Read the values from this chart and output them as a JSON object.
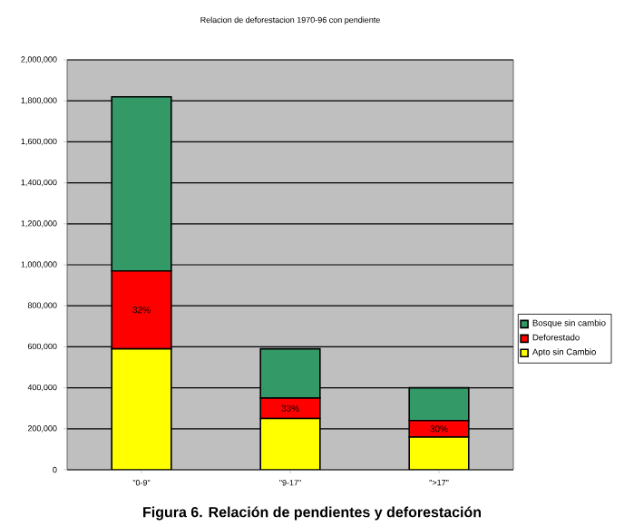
{
  "chart_data": {
    "type": "bar",
    "title": "Relacion de deforestacion 1970-96 con pendiente",
    "stacked": true,
    "categories": [
      "\"0-9\"",
      "\"9-17\"",
      "\">17\""
    ],
    "series": [
      {
        "name": "Apto sin Cambio",
        "color": "#ffff00",
        "values": [
          590000,
          250000,
          160000
        ]
      },
      {
        "name": "Deforestado",
        "color": "#ff0000",
        "values": [
          380000,
          100000,
          80000
        ]
      },
      {
        "name": "Bosque sin cambio",
        "color": "#339966",
        "values": [
          850000,
          240000,
          160000
        ]
      }
    ],
    "ylim": [
      0,
      2000000
    ],
    "yticks": [
      {
        "value": 0,
        "label": "0"
      },
      {
        "value": 200000,
        "label": "200,000"
      },
      {
        "value": 400000,
        "label": "400,000"
      },
      {
        "value": 600000,
        "label": "600,000"
      },
      {
        "value": 800000,
        "label": "800,000"
      },
      {
        "value": 1000000,
        "label": "1,000,000"
      },
      {
        "value": 1200000,
        "label": "1,200,000"
      },
      {
        "value": 1400000,
        "label": "1,400,000"
      },
      {
        "value": 1600000,
        "label": "1,600,000"
      },
      {
        "value": 1800000,
        "label": "1,800,000"
      },
      {
        "value": 2000000,
        "label": "2,000,000"
      }
    ],
    "grid": "y",
    "legend": "right",
    "annotations": [
      "32%",
      "33%",
      "30%",
      "Figura 6. Relación de pendientes y deforestación"
    ]
  }
}
